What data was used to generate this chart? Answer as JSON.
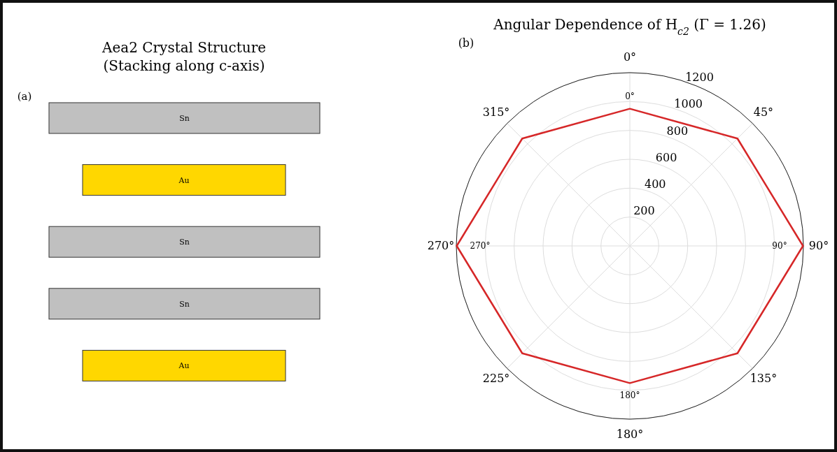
{
  "chart_data": [
    {
      "type": "other",
      "title": "Aea2 Crystal Structure\n(Stacking along c-axis)",
      "categories": [
        "Sn",
        "Au",
        "Sn",
        "Sn",
        "Au"
      ],
      "colors": [
        "#c0c0c0",
        "#ffd700",
        "#c0c0c0",
        "#c0c0c0",
        "#ffd700"
      ],
      "annotations": [
        "(a)"
      ]
    },
    {
      "type": "radar",
      "title": "Angular Dependence of H$_{c2}$ (Γ = 1.26)",
      "categories": [
        "0°",
        "45°",
        "90°",
        "135°",
        "180°",
        "225°",
        "270°",
        "315°"
      ],
      "series": [
        {
          "color": "#d62728",
          "values": [
            950,
            1052,
            1197,
            1052,
            950,
            1052,
            1197,
            1052
          ]
        }
      ],
      "ylim": [
        0,
        1200
      ],
      "yticks": [
        200,
        400,
        600,
        800,
        1000,
        1200
      ],
      "grid": true,
      "marker": "none",
      "line_style": "solid",
      "annotations": [
        "(b)",
        "0°",
        "90°",
        "180°",
        "270°"
      ]
    }
  ]
}
